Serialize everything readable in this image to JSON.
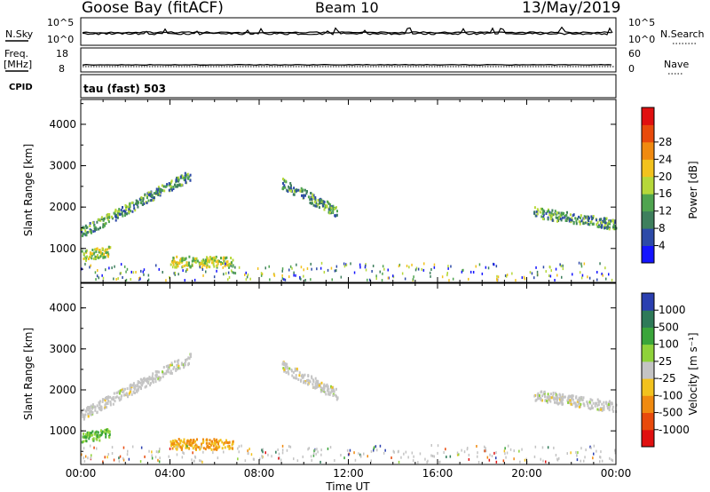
{
  "header": {
    "station": "Goose Bay (fitACF)",
    "beam": "Beam 10",
    "date": "13/May/2019"
  },
  "status_panels": {
    "nsky_label": "N.Sky",
    "nsky_ticks": [
      "10^5",
      "10^0"
    ],
    "nsearch_label": "N.Search",
    "nsearch_ticks": [
      "10^5",
      "10^0"
    ],
    "freq_label_1": "Freq.",
    "freq_label_2": "[MHz]",
    "freq_ticks": [
      "18",
      "8"
    ],
    "nave_label": "Nave",
    "nave_ticks": [
      "60",
      "0"
    ],
    "cpid_label": "CPID",
    "cpid_value": "tau (fast) 503"
  },
  "chart_data": [
    {
      "type": "heatmap",
      "panel": "power",
      "xlabel": "",
      "ylabel": "Slant Range [km]",
      "x_range_hours": [
        0,
        24
      ],
      "y_range_km": [
        180,
        4600
      ],
      "y_ticks": [
        "1000",
        "2000",
        "3000",
        "4000"
      ],
      "colorbar": {
        "label": "Power [dB]",
        "ticks": [
          "4",
          "8",
          "12",
          "16",
          "20",
          "24",
          "28"
        ],
        "colors": [
          "#1414ff",
          "#2d4aa8",
          "#3e7f5d",
          "#4fa44f",
          "#b6d83a",
          "#f2c21e",
          "#f08a10",
          "#e84a0c",
          "#e01010"
        ]
      },
      "echo_regions": [
        {
          "from_h": 0.0,
          "to_h": 4.9,
          "range_start_km": 1400,
          "range_end_km": 2800,
          "level": "8-20 dB"
        },
        {
          "from_h": 9.0,
          "to_h": 11.5,
          "range_start_km": 2600,
          "range_end_km": 1900,
          "level": "8-16 dB"
        },
        {
          "from_h": 20.3,
          "to_h": 24.0,
          "range_start_km": 1900,
          "range_end_km": 1600,
          "level": "8-20 dB"
        },
        {
          "from_h": 0.0,
          "to_h": 1.3,
          "range_start_km": 850,
          "range_end_km": 950,
          "level": "12-24 dB"
        },
        {
          "from_h": 4.0,
          "to_h": 6.8,
          "range_start_km": 700,
          "range_end_km": 700,
          "level": "12-20 dB"
        }
      ]
    },
    {
      "type": "heatmap",
      "panel": "velocity",
      "xlabel": "Time UT",
      "ylabel": "Slant Range [km]",
      "x_range_hours": [
        0,
        24
      ],
      "x_ticks": [
        "00:00",
        "04:00",
        "08:00",
        "12:00",
        "16:00",
        "20:00",
        "00:00"
      ],
      "y_range_km": [
        180,
        4600
      ],
      "y_ticks": [
        "1000",
        "2000",
        "3000",
        "4000"
      ],
      "colorbar": {
        "label": "Velocity [m s⁻¹]",
        "ticks": [
          "1000",
          "500",
          "100",
          "25",
          "-25",
          "-100",
          "-500",
          "-1000"
        ],
        "colors": [
          "#2a3fb0",
          "#2e7a58",
          "#3aa53a",
          "#8fd23a",
          "#c4c4c4",
          "#f2c21e",
          "#f08a10",
          "#e84a0c",
          "#e01010"
        ]
      },
      "echo_regions": [
        {
          "from_h": 0.0,
          "to_h": 4.9,
          "range_start_km": 1400,
          "range_end_km": 2800,
          "level": "-25 to 25 m/s"
        },
        {
          "from_h": 9.0,
          "to_h": 11.5,
          "range_start_km": 2600,
          "range_end_km": 1900,
          "level": "-25 to 25 m/s"
        },
        {
          "from_h": 20.3,
          "to_h": 24.0,
          "range_start_km": 1900,
          "range_end_km": 1600,
          "level": "-25 to 25 m/s"
        },
        {
          "from_h": 0.0,
          "to_h": 1.3,
          "range_start_km": 850,
          "range_end_km": 950,
          "level": "25 to 500 m/s"
        },
        {
          "from_h": 4.0,
          "to_h": 6.8,
          "range_start_km": 700,
          "range_end_km": 700,
          "level": "-100 to -25 m/s"
        }
      ]
    }
  ]
}
